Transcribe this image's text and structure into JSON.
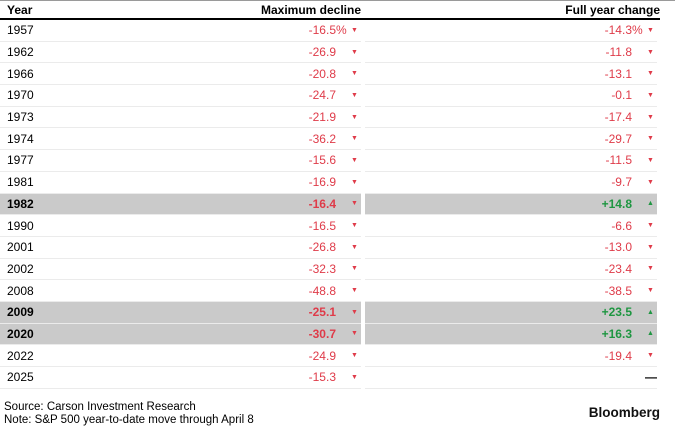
{
  "table": {
    "headers": {
      "year": "Year",
      "max_decline": "Maximum decline",
      "full_year": "Full year change"
    },
    "rows": [
      {
        "year": "1957",
        "max": "-16.5",
        "max_pct": "%",
        "max_dir": "down",
        "fy": "-14.3",
        "fy_pct": "%",
        "fy_dir": "down",
        "highlight": false
      },
      {
        "year": "1962",
        "max": "-26.9",
        "max_pct": "",
        "max_dir": "down",
        "fy": "-11.8",
        "fy_pct": "",
        "fy_dir": "down",
        "highlight": false
      },
      {
        "year": "1966",
        "max": "-20.8",
        "max_pct": "",
        "max_dir": "down",
        "fy": "-13.1",
        "fy_pct": "",
        "fy_dir": "down",
        "highlight": false
      },
      {
        "year": "1970",
        "max": "-24.7",
        "max_pct": "",
        "max_dir": "down",
        "fy": "-0.1",
        "fy_pct": "",
        "fy_dir": "down",
        "highlight": false
      },
      {
        "year": "1973",
        "max": "-21.9",
        "max_pct": "",
        "max_dir": "down",
        "fy": "-17.4",
        "fy_pct": "",
        "fy_dir": "down",
        "highlight": false
      },
      {
        "year": "1974",
        "max": "-36.2",
        "max_pct": "",
        "max_dir": "down",
        "fy": "-29.7",
        "fy_pct": "",
        "fy_dir": "down",
        "highlight": false
      },
      {
        "year": "1977",
        "max": "-15.6",
        "max_pct": "",
        "max_dir": "down",
        "fy": "-11.5",
        "fy_pct": "",
        "fy_dir": "down",
        "highlight": false
      },
      {
        "year": "1981",
        "max": "-16.9",
        "max_pct": "",
        "max_dir": "down",
        "fy": "-9.7",
        "fy_pct": "",
        "fy_dir": "down",
        "highlight": false
      },
      {
        "year": "1982",
        "max": "-16.4",
        "max_pct": "",
        "max_dir": "down",
        "fy": "+14.8",
        "fy_pct": "",
        "fy_dir": "up",
        "highlight": true
      },
      {
        "year": "1990",
        "max": "-16.5",
        "max_pct": "",
        "max_dir": "down",
        "fy": "-6.6",
        "fy_pct": "",
        "fy_dir": "down",
        "highlight": false
      },
      {
        "year": "2001",
        "max": "-26.8",
        "max_pct": "",
        "max_dir": "down",
        "fy": "-13.0",
        "fy_pct": "",
        "fy_dir": "down",
        "highlight": false
      },
      {
        "year": "2002",
        "max": "-32.3",
        "max_pct": "",
        "max_dir": "down",
        "fy": "-23.4",
        "fy_pct": "",
        "fy_dir": "down",
        "highlight": false
      },
      {
        "year": "2008",
        "max": "-48.8",
        "max_pct": "",
        "max_dir": "down",
        "fy": "-38.5",
        "fy_pct": "",
        "fy_dir": "down",
        "highlight": false
      },
      {
        "year": "2009",
        "max": "-25.1",
        "max_pct": "",
        "max_dir": "down",
        "fy": "+23.5",
        "fy_pct": "",
        "fy_dir": "up",
        "highlight": true
      },
      {
        "year": "2020",
        "max": "-30.7",
        "max_pct": "",
        "max_dir": "down",
        "fy": "+16.3",
        "fy_pct": "",
        "fy_dir": "up",
        "highlight": true
      },
      {
        "year": "2022",
        "max": "-24.9",
        "max_pct": "",
        "max_dir": "down",
        "fy": "-19.4",
        "fy_pct": "",
        "fy_dir": "down",
        "highlight": false
      },
      {
        "year": "2025",
        "max": "-15.3",
        "max_pct": "",
        "max_dir": "down",
        "fy": "",
        "fy_pct": "",
        "fy_dir": "none",
        "highlight": false
      }
    ]
  },
  "icons": {
    "down": "▼",
    "up": "▲",
    "none": "—"
  },
  "colors": {
    "negative": "#df3b49",
    "positive": "#1e9641",
    "highlight": "#cacaca"
  },
  "footer": {
    "source": "Source: Carson Investment Research",
    "note": "Note: S&P 500 year-to-date move through April 8",
    "brand": "Bloomberg"
  },
  "chart_data": {
    "type": "table",
    "title": "",
    "columns": [
      "Year",
      "Maximum decline",
      "Full year change"
    ],
    "rows": [
      [
        1957,
        -16.5,
        -14.3
      ],
      [
        1962,
        -26.9,
        -11.8
      ],
      [
        1966,
        -20.8,
        -13.1
      ],
      [
        1970,
        -24.7,
        -0.1
      ],
      [
        1973,
        -21.9,
        -17.4
      ],
      [
        1974,
        -36.2,
        -29.7
      ],
      [
        1977,
        -15.6,
        -11.5
      ],
      [
        1981,
        -16.9,
        -9.7
      ],
      [
        1982,
        -16.4,
        14.8
      ],
      [
        1990,
        -16.5,
        -6.6
      ],
      [
        2001,
        -26.8,
        -13.0
      ],
      [
        2002,
        -32.3,
        -23.4
      ],
      [
        2008,
        -48.8,
        -38.5
      ],
      [
        2009,
        -25.1,
        23.5
      ],
      [
        2020,
        -30.7,
        16.3
      ],
      [
        2022,
        -24.9,
        -19.4
      ],
      [
        2025,
        -15.3,
        null
      ]
    ],
    "highlighted_years": [
      1982,
      2009,
      2020
    ],
    "units": "percent",
    "source": "Carson Investment Research",
    "note": "S&P 500 year-to-date move through April 8"
  }
}
